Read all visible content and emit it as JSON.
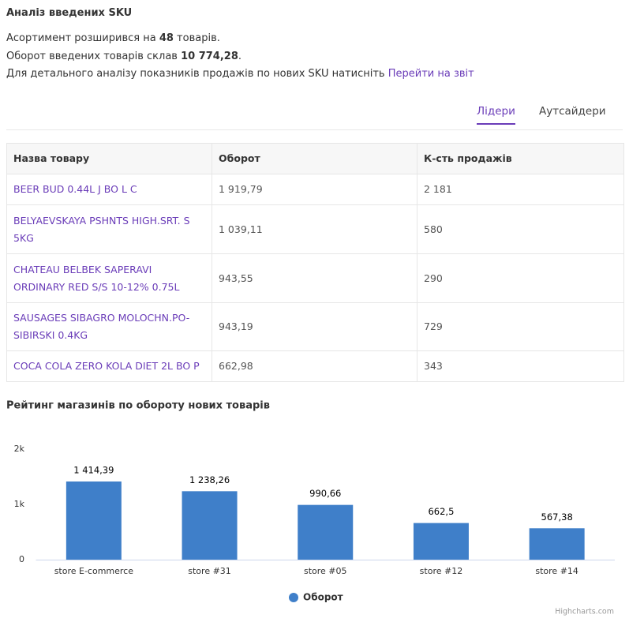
{
  "header": {
    "title": "Аналіз введених SKU"
  },
  "summary": {
    "assortment": {
      "before": "Асортимент розширився на",
      "value": 48,
      "after": "товарів."
    },
    "turnover": {
      "before": "Оборот введених товарів склав",
      "value": "10 774,28",
      "after": "."
    },
    "report": {
      "before": "Для детального аналізу показників продажів по нових SKU натисніть",
      "link": "Перейти на звіт"
    }
  },
  "tabs": {
    "items": [
      "Лідери",
      "Аутсайдери"
    ],
    "active": 0
  },
  "table": {
    "headers": [
      "Назва товару",
      "Оборот",
      "К-сть продажів"
    ],
    "rows": [
      [
        "BEER BUD 0.44L J BO L C",
        "1 919,79",
        "2 181"
      ],
      [
        "BELYAEVSKAYA PSHNTS HIGH.SRT. S 5KG",
        "1 039,11",
        "580"
      ],
      [
        "CHATEAU BELBEK SAPERAVI ORDINARY RED S/S 10-12% 0.75L",
        "943,55",
        "290"
      ],
      [
        "SAUSAGES SIBAGRO MOLOCHN.PO-SIBIRSKI 0.4KG",
        "943,19",
        "729"
      ],
      [
        "COCA COLA ZERO KOLA DIET 2L BO P",
        "662,98",
        "343"
      ]
    ]
  },
  "chart_data": {
    "type": "bar",
    "title": "Рейтинг магазинів по обороту нових товарів",
    "categories": [
      "store E-commerce",
      "store #31",
      "store #05",
      "store #12",
      "store #14"
    ],
    "series": [
      {
        "name": "Оборот",
        "color": "#3f7fc9",
        "values": [
          1414.39,
          1238.26,
          990.66,
          662.5,
          567.38
        ],
        "value_labels": [
          "1 414,39",
          "1 238,26",
          "990,66",
          "662,5",
          "567,38"
        ]
      }
    ],
    "ylim": [
      0,
      2000
    ],
    "yticks": [
      0,
      {
        "value": 1000,
        "label": "1k"
      },
      {
        "value": 2000,
        "label": "2k"
      }
    ],
    "grid": false,
    "legend": "bottom",
    "credits": "Highcharts.com"
  }
}
